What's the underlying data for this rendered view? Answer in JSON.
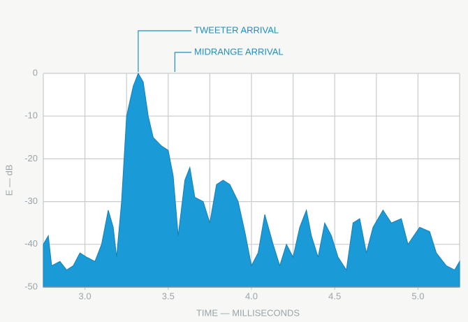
{
  "chart_data": {
    "type": "area",
    "xlabel": "TIME — MILLISECONDS",
    "ylabel": "E — dB",
    "x": [
      2.75,
      2.78,
      2.8,
      2.85,
      2.89,
      2.93,
      2.97,
      3.01,
      3.06,
      3.1,
      3.14,
      3.17,
      3.19,
      3.22,
      3.25,
      3.29,
      3.32,
      3.35,
      3.38,
      3.41,
      3.46,
      3.5,
      3.53,
      3.56,
      3.6,
      3.63,
      3.66,
      3.71,
      3.75,
      3.79,
      3.83,
      3.87,
      3.92,
      3.96,
      4.0,
      4.04,
      4.08,
      4.13,
      4.17,
      4.21,
      4.25,
      4.29,
      4.33,
      4.36,
      4.4,
      4.44,
      4.48,
      4.52,
      4.57,
      4.61,
      4.65,
      4.69,
      4.73,
      4.79,
      4.84,
      4.9,
      4.94,
      5.01,
      5.07,
      5.11,
      5.17,
      5.22,
      5.25
    ],
    "values": [
      -40,
      -38,
      -45,
      -44,
      -46,
      -45,
      -42,
      -43,
      -44,
      -40,
      -32,
      -36,
      -43,
      -30,
      -10,
      -3,
      0,
      -2,
      -10,
      -15,
      -17,
      -18,
      -24,
      -38,
      -25,
      -22,
      -29,
      -30,
      -35,
      -26,
      -25,
      -26,
      -30,
      -37,
      -45,
      -42,
      -33,
      -40,
      -45,
      -40,
      -43,
      -36,
      -32,
      -38,
      -43,
      -35,
      -38,
      -43,
      -46,
      -35,
      -34,
      -42,
      -36,
      -32,
      -35,
      -34,
      -40,
      -36,
      -37,
      -42,
      -45,
      -46,
      -44
    ],
    "color": "#1a9ad6",
    "xlim": [
      2.75,
      5.25
    ],
    "ylim": [
      -50,
      0
    ],
    "xticks": [
      {
        "value": 3,
        "label": "3.0"
      },
      {
        "value": 3.5,
        "label": "3.5"
      },
      {
        "value": 4,
        "label": "4.0"
      },
      {
        "value": 4.5,
        "label": "4.5"
      },
      {
        "value": 5,
        "label": "5.0"
      }
    ],
    "xgrid": [
      2.75,
      3,
      3.25,
      3.5,
      3.75,
      4,
      4.25,
      4.5,
      4.75,
      5,
      5.25
    ],
    "yticks": [
      0,
      -10,
      -20,
      -30,
      -40,
      -50
    ],
    "grid": true,
    "annotations": [
      {
        "text": "TWEETER ARRIVAL",
        "x": 3.32
      },
      {
        "text": "MIDRANGE ARRIVAL",
        "x": 3.54
      }
    ]
  }
}
